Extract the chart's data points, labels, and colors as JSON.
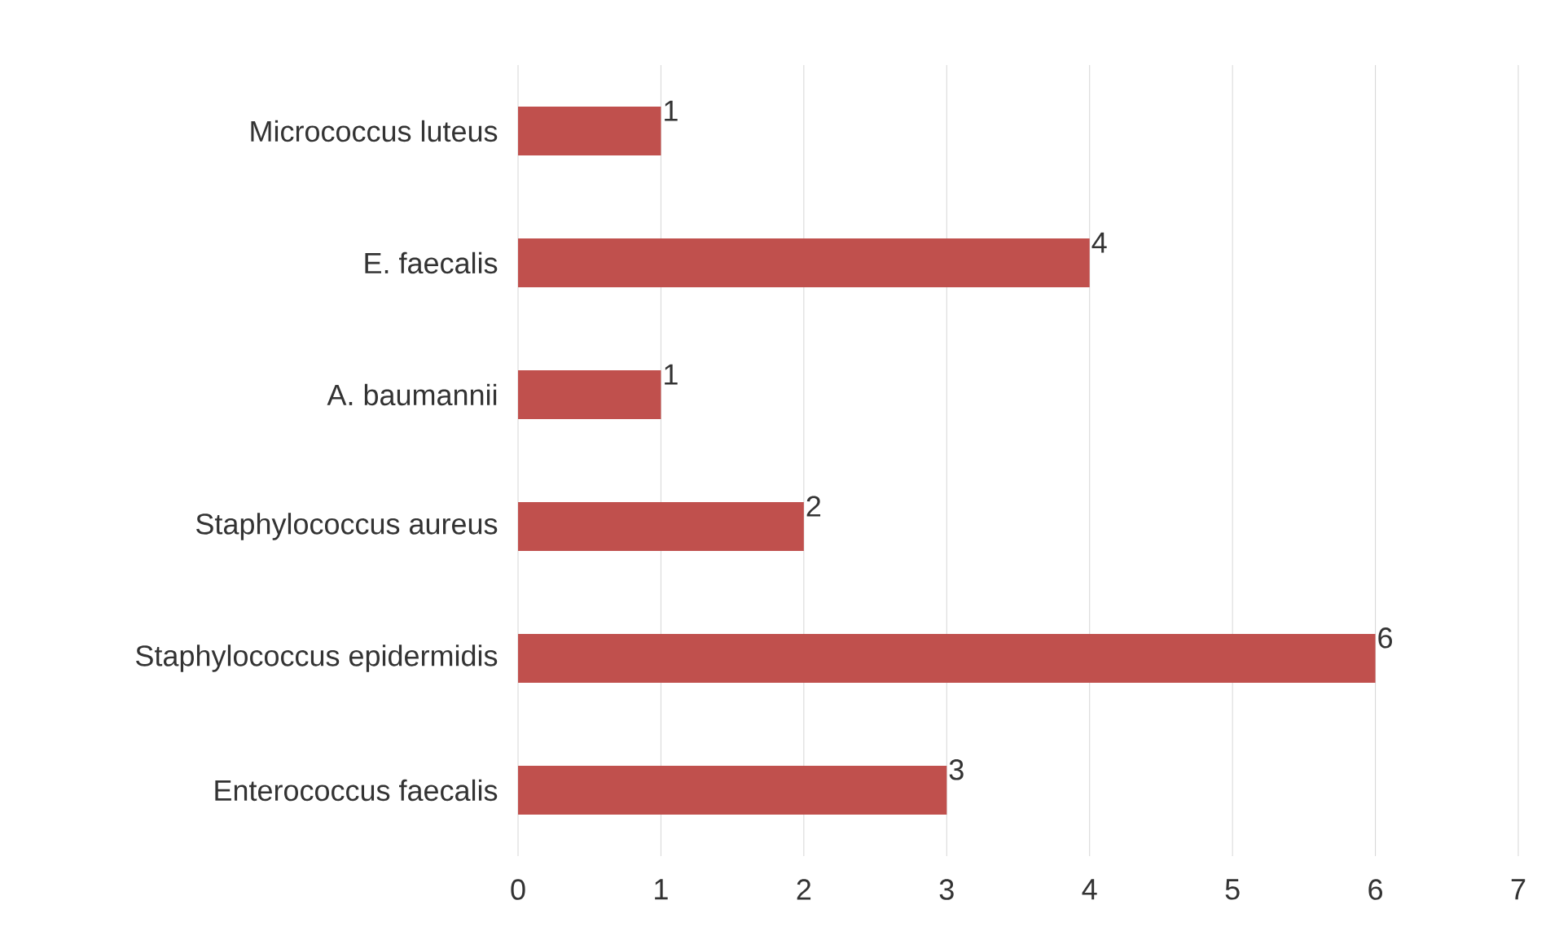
{
  "chart_data": {
    "type": "bar",
    "orientation": "horizontal",
    "categories": [
      "Micrococcus luteus",
      "E. faecalis",
      "A. baumannii",
      "Staphylococcus aureus",
      "Staphylococcus epidermidis",
      "Enterococcus faecalis"
    ],
    "values": [
      1,
      4,
      1,
      2,
      6,
      3
    ],
    "color": "#c0504d",
    "xlim": [
      0,
      7
    ],
    "xticks": [
      0,
      1,
      2,
      3,
      4,
      5,
      6,
      7
    ],
    "grid": "x",
    "data_labels": true
  }
}
